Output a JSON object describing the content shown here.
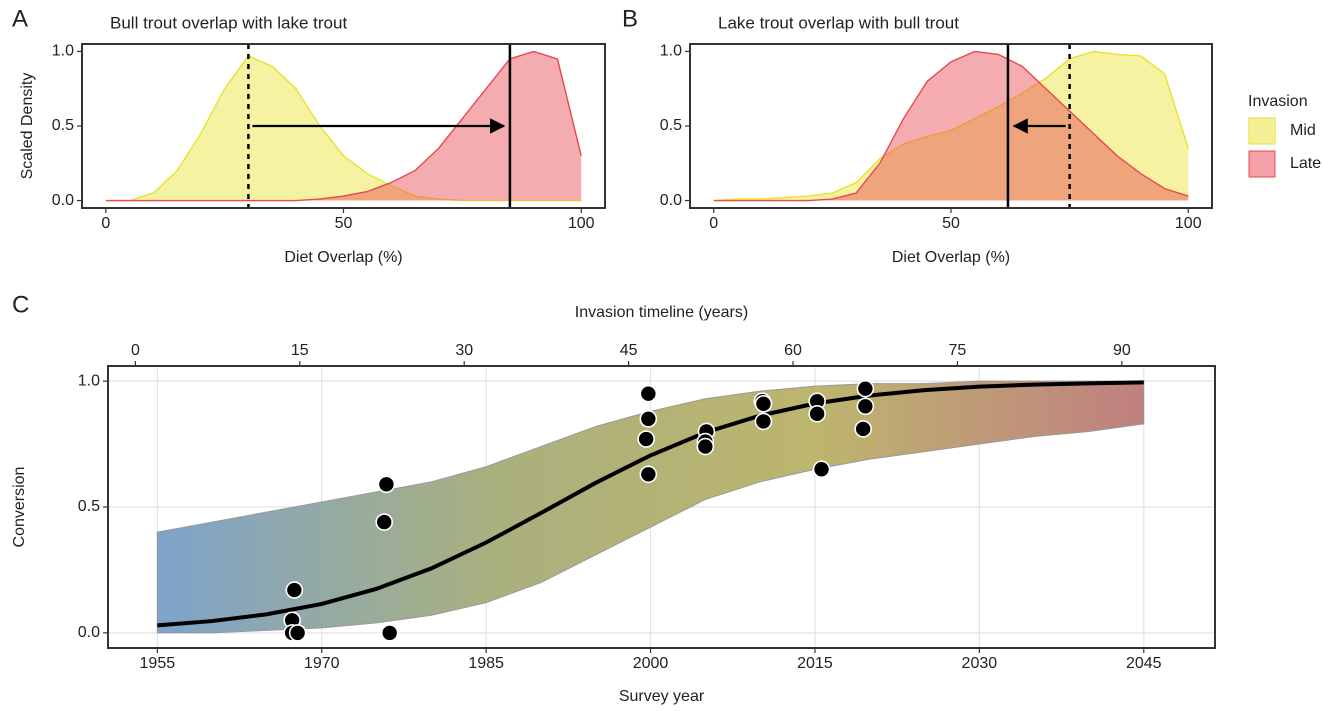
{
  "chart_data": [
    {
      "type": "area",
      "panel_label": "A",
      "title": "Bull trout overlap with lake trout",
      "xlabel": "Diet Overlap (%)",
      "ylabel": "Scaled Density",
      "xlim": [
        -5,
        105
      ],
      "ylim": [
        -0.05,
        1.05
      ],
      "xticks": [
        0,
        50,
        100
      ],
      "yticks": [
        {
          "value": 0,
          "label": "0.0"
        },
        {
          "value": 0.5,
          "label": "0.5"
        },
        {
          "value": 1,
          "label": "1.0"
        }
      ],
      "grid": false,
      "legend": "right",
      "legend_title": "Invasion",
      "arrow_y": 0.5,
      "x": [
        0,
        5,
        10,
        15,
        20,
        25,
        30,
        35,
        40,
        45,
        50,
        55,
        60,
        65,
        70,
        75,
        80,
        85,
        90,
        95,
        100
      ],
      "series": [
        {
          "name": "Mid",
          "color": "#e8e22e",
          "median": 30,
          "median_style": "dashed",
          "values": [
            0,
            0,
            0.05,
            0.2,
            0.45,
            0.75,
            0.97,
            0.9,
            0.75,
            0.5,
            0.3,
            0.18,
            0.1,
            0.03,
            0.01,
            0,
            0,
            0,
            0,
            0,
            0
          ]
        },
        {
          "name": "Late",
          "color": "#e8474f",
          "median": 85,
          "median_style": "solid",
          "values": [
            0,
            0,
            0,
            0,
            0,
            0,
            0,
            0,
            0,
            0.01,
            0.03,
            0.06,
            0.12,
            0.2,
            0.35,
            0.55,
            0.75,
            0.95,
            1.0,
            0.95,
            0.3
          ]
        }
      ]
    },
    {
      "type": "area",
      "panel_label": "B",
      "title": "Lake trout overlap with bull trout",
      "xlabel": "Diet Overlap (%)",
      "xlim": [
        -5,
        105
      ],
      "ylim": [
        -0.05,
        1.05
      ],
      "xticks": [
        0,
        50,
        100
      ],
      "yticks": [
        {
          "value": 0,
          "label": "0.0"
        },
        {
          "value": 0.5,
          "label": "0.5"
        },
        {
          "value": 1,
          "label": "1.0"
        }
      ],
      "grid": false,
      "arrow_y": 0.5,
      "x": [
        0,
        5,
        10,
        15,
        20,
        25,
        30,
        35,
        40,
        45,
        50,
        55,
        60,
        65,
        70,
        75,
        80,
        85,
        90,
        95,
        100
      ],
      "series": [
        {
          "name": "Mid",
          "color": "#e8e22e",
          "median": 75,
          "median_style": "dashed",
          "values": [
            0,
            0.01,
            0.01,
            0.02,
            0.03,
            0.05,
            0.12,
            0.28,
            0.38,
            0.43,
            0.47,
            0.55,
            0.63,
            0.72,
            0.82,
            0.95,
            1.0,
            0.98,
            0.97,
            0.85,
            0.35
          ]
        },
        {
          "name": "Late",
          "color": "#e8474f",
          "median": 62,
          "median_style": "solid",
          "values": [
            0,
            0,
            0,
            0,
            0,
            0.01,
            0.05,
            0.25,
            0.55,
            0.8,
            0.93,
            1.0,
            0.98,
            0.9,
            0.75,
            0.6,
            0.45,
            0.3,
            0.18,
            0.08,
            0.03
          ]
        }
      ]
    },
    {
      "type": "line",
      "panel_label": "C",
      "xlabel": "Survey year",
      "x2label": "Invasion timeline (years)",
      "ylabel": "Conversion",
      "xlim": [
        1950.5,
        2051.5
      ],
      "x2lim": [
        -2.5,
        98.5
      ],
      "ylim": [
        -0.06,
        1.06
      ],
      "xticks": [
        1955,
        1970,
        1985,
        2000,
        2015,
        2030,
        2045
      ],
      "x2ticks": [
        0,
        15,
        30,
        45,
        60,
        75,
        90
      ],
      "yticks": [
        {
          "value": 0,
          "label": "0.0"
        },
        {
          "value": 0.5,
          "label": "0.5"
        },
        {
          "value": 1,
          "label": "1.0"
        }
      ],
      "grid": true,
      "x": [
        1955,
        1960,
        1965,
        1970,
        1975,
        1980,
        1985,
        1990,
        1995,
        2000,
        2005,
        2010,
        2015,
        2020,
        2025,
        2030,
        2035,
        2040,
        2045
      ],
      "fit": {
        "color": "#000000",
        "values": [
          0.03,
          0.047,
          0.074,
          0.115,
          0.175,
          0.256,
          0.359,
          0.476,
          0.596,
          0.705,
          0.796,
          0.863,
          0.911,
          0.943,
          0.964,
          0.978,
          0.986,
          0.991,
          0.995
        ]
      },
      "band": {
        "colors": [
          "#7ea3cc",
          "#a9b07f",
          "#bdb56e",
          "#c07f80"
        ],
        "upper": [
          0.4,
          0.44,
          0.48,
          0.52,
          0.56,
          0.6,
          0.66,
          0.74,
          0.82,
          0.88,
          0.93,
          0.96,
          0.98,
          0.99,
          0.99,
          1.0,
          1.0,
          1.0,
          1.0
        ],
        "lower": [
          0,
          0,
          0.01,
          0.02,
          0.04,
          0.07,
          0.12,
          0.2,
          0.31,
          0.42,
          0.53,
          0.6,
          0.65,
          0.69,
          0.72,
          0.75,
          0.78,
          0.8,
          0.83
        ]
      },
      "points": {
        "color": "#000000",
        "x": [
          1967.5,
          1967.3,
          1967.3,
          1967.8,
          1975.9,
          1975.7,
          1976.2,
          1999.8,
          1999.8,
          1999.6,
          1999.8,
          2005.1,
          2005.0,
          2005.0,
          2010.2,
          2010.3,
          2010.3,
          2015.2,
          2015.2,
          2015.6,
          2019.6,
          2019.6,
          2019.4
        ],
        "y": [
          0.17,
          0.05,
          0,
          0,
          0.59,
          0.44,
          0,
          0.95,
          0.85,
          0.77,
          0.63,
          0.8,
          0.76,
          0.74,
          0.92,
          0.91,
          0.84,
          0.92,
          0.87,
          0.65,
          0.97,
          0.9,
          0.81
        ]
      }
    }
  ]
}
